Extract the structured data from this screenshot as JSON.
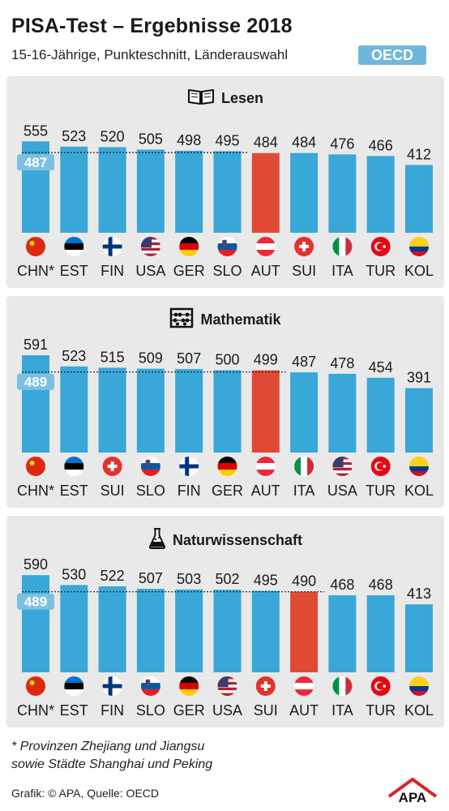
{
  "header": {
    "title": "PISA-Test – Ergebnisse 2018",
    "subtitle": "15-16-Jährige, Punkteschnitt, Länderauswahl",
    "badge": "OECD"
  },
  "chart_data": [
    {
      "type": "bar",
      "title": "Lesen",
      "icon": "book-icon",
      "categories": [
        "CHN*",
        "EST",
        "FIN",
        "USA",
        "GER",
        "SLO",
        "AUT",
        "SUI",
        "ITA",
        "TUR",
        "KOL"
      ],
      "values": [
        555,
        523,
        520,
        505,
        498,
        495,
        484,
        484,
        476,
        466,
        412
      ],
      "flags": [
        "china",
        "estonia",
        "finland",
        "usa",
        "germany",
        "slovenia",
        "austria",
        "switzerland",
        "italy",
        "turkey",
        "colombia"
      ],
      "average": 487,
      "highlight": "AUT"
    },
    {
      "type": "bar",
      "title": "Mathematik",
      "icon": "abacus-icon",
      "categories": [
        "CHN*",
        "EST",
        "SUI",
        "SLO",
        "FIN",
        "GER",
        "AUT",
        "ITA",
        "USA",
        "TUR",
        "KOL"
      ],
      "values": [
        591,
        523,
        515,
        509,
        507,
        500,
        499,
        487,
        478,
        454,
        391
      ],
      "flags": [
        "china",
        "estonia",
        "switzerland",
        "slovenia",
        "finland",
        "germany",
        "austria",
        "italy",
        "usa",
        "turkey",
        "colombia"
      ],
      "average": 489,
      "highlight": "AUT"
    },
    {
      "type": "bar",
      "title": "Naturwissenschaft",
      "icon": "flask-icon",
      "categories": [
        "CHN*",
        "EST",
        "FIN",
        "SLO",
        "GER",
        "USA",
        "SUI",
        "AUT",
        "ITA",
        "TUR",
        "KOL"
      ],
      "values": [
        590,
        530,
        522,
        507,
        503,
        502,
        495,
        490,
        468,
        468,
        413
      ],
      "flags": [
        "china",
        "estonia",
        "finland",
        "slovenia",
        "germany",
        "usa",
        "switzerland",
        "austria",
        "italy",
        "turkey",
        "colombia"
      ],
      "average": 489,
      "highlight": "AUT"
    }
  ],
  "colors": {
    "bar": "#3aa7d9",
    "highlight": "#e04a35",
    "panel": "#e9e9e9",
    "average_box": "#7cc0e3"
  },
  "footnote": {
    "line1": "* Provinzen Zhejiang und Jiangsu",
    "line2": "sowie Städte Shanghai und Peking"
  },
  "credit": "Grafik: © APA, Quelle: OECD",
  "logo": "APA"
}
